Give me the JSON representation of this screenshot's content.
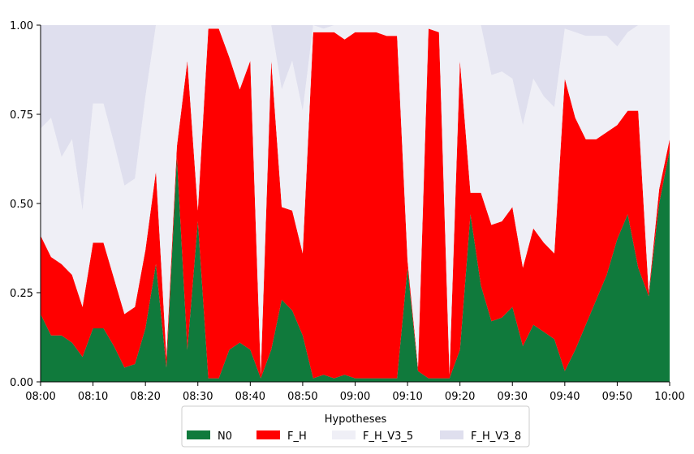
{
  "chart_data": {
    "type": "area",
    "stacked": true,
    "normalized": true,
    "x": [
      "08:00",
      "08:02",
      "08:04",
      "08:06",
      "08:08",
      "08:10",
      "08:12",
      "08:14",
      "08:16",
      "08:18",
      "08:20",
      "08:22",
      "08:24",
      "08:26",
      "08:28",
      "08:30",
      "08:32",
      "08:34",
      "08:36",
      "08:38",
      "08:40",
      "08:42",
      "08:44",
      "08:46",
      "08:48",
      "08:50",
      "08:52",
      "08:54",
      "08:56",
      "08:58",
      "09:00",
      "09:02",
      "09:04",
      "09:06",
      "09:08",
      "09:10",
      "09:12",
      "09:14",
      "09:16",
      "09:18",
      "09:20",
      "09:22",
      "09:24",
      "09:26",
      "09:28",
      "09:30",
      "09:32",
      "09:34",
      "09:36",
      "09:38",
      "09:40",
      "09:42",
      "09:44",
      "09:46",
      "09:48",
      "09:50",
      "09:52",
      "09:54",
      "09:56",
      "09:58",
      "10:00"
    ],
    "series": [
      {
        "name": "N0",
        "color": "#107a3c",
        "values": [
          0.19,
          0.13,
          0.13,
          0.11,
          0.07,
          0.15,
          0.15,
          0.1,
          0.04,
          0.05,
          0.15,
          0.33,
          0.04,
          0.63,
          0.09,
          0.45,
          0.01,
          0.01,
          0.09,
          0.11,
          0.09,
          0.01,
          0.09,
          0.23,
          0.2,
          0.13,
          0.01,
          0.02,
          0.01,
          0.02,
          0.01,
          0.01,
          0.01,
          0.01,
          0.01,
          0.32,
          0.03,
          0.01,
          0.01,
          0.01,
          0.09,
          0.47,
          0.27,
          0.17,
          0.18,
          0.21,
          0.1,
          0.16,
          0.14,
          0.12,
          0.03,
          0.09,
          0.16,
          0.23,
          0.3,
          0.4,
          0.47,
          0.32,
          0.24,
          0.5,
          0.65
        ]
      },
      {
        "name": "F_H",
        "color": "#ff0000",
        "values": [
          0.22,
          0.22,
          0.2,
          0.19,
          0.14,
          0.24,
          0.24,
          0.19,
          0.15,
          0.16,
          0.22,
          0.26,
          0.03,
          0.03,
          0.81,
          0.03,
          0.98,
          0.98,
          0.82,
          0.71,
          0.81,
          0.01,
          0.81,
          0.26,
          0.28,
          0.23,
          0.97,
          0.96,
          0.97,
          0.94,
          0.97,
          0.97,
          0.97,
          0.96,
          0.96,
          0.02,
          0.01,
          0.98,
          0.97,
          0.01,
          0.81,
          0.06,
          0.26,
          0.27,
          0.27,
          0.28,
          0.22,
          0.27,
          0.25,
          0.24,
          0.82,
          0.65,
          0.52,
          0.45,
          0.4,
          0.32,
          0.29,
          0.44,
          0.01,
          0.04,
          0.03
        ]
      },
      {
        "name": "F_H_V3_5",
        "color": "#efeff6",
        "values": [
          0.3,
          0.39,
          0.3,
          0.38,
          0.27,
          0.39,
          0.39,
          0.38,
          0.36,
          0.36,
          0.43,
          0.41,
          0.93,
          0.34,
          0.1,
          0.52,
          0.01,
          0.01,
          0.09,
          0.18,
          0.1,
          0.98,
          0.1,
          0.33,
          0.42,
          0.4,
          0.02,
          0.01,
          0.02,
          0.04,
          0.02,
          0.02,
          0.02,
          0.03,
          0.03,
          0.66,
          0.96,
          0.01,
          0.02,
          0.98,
          0.1,
          0.47,
          0.47,
          0.42,
          0.42,
          0.36,
          0.4,
          0.42,
          0.41,
          0.41,
          0.14,
          0.24,
          0.29,
          0.29,
          0.27,
          0.22,
          0.22,
          0.24,
          0.75,
          0.46,
          0.32
        ]
      },
      {
        "name": "F_H_V3_8",
        "color": "#dfdfee",
        "values": [
          0.29,
          0.26,
          0.37,
          0.32,
          0.52,
          0.22,
          0.22,
          0.33,
          0.45,
          0.43,
          0.2,
          0.0,
          0.0,
          0.0,
          0.0,
          0.0,
          0.0,
          0.0,
          0.0,
          0.0,
          0.0,
          0.0,
          0.0,
          0.18,
          0.1,
          0.24,
          0.0,
          0.01,
          0.0,
          0.0,
          0.0,
          0.0,
          0.0,
          0.0,
          0.0,
          0.0,
          0.0,
          0.0,
          0.0,
          0.0,
          0.0,
          0.0,
          0.0,
          0.14,
          0.13,
          0.15,
          0.28,
          0.15,
          0.2,
          0.23,
          0.01,
          0.02,
          0.03,
          0.03,
          0.03,
          0.06,
          0.02,
          0.0,
          0.0,
          0.0,
          0.0
        ]
      }
    ],
    "xticks": [
      "08:00",
      "08:10",
      "08:20",
      "08:30",
      "08:40",
      "08:50",
      "09:00",
      "09:10",
      "09:20",
      "09:30",
      "09:40",
      "09:50",
      "10:00"
    ],
    "yticks": [
      "0.00",
      "0.25",
      "0.50",
      "0.75",
      "1.00"
    ],
    "ylim": [
      0,
      1
    ],
    "xlim": [
      "08:00",
      "10:00"
    ],
    "grid": false,
    "legend": {
      "title": "Hypotheses",
      "placement": "bottom-center",
      "ncol": 4
    }
  }
}
